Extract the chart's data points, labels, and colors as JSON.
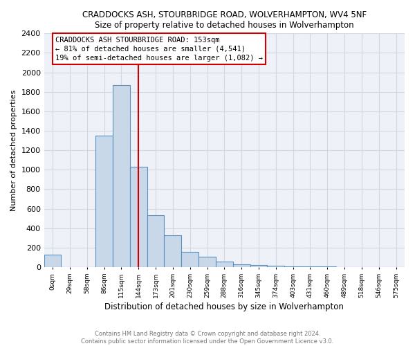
{
  "title": "CRADDOCKS ASH, STOURBRIDGE ROAD, WOLVERHAMPTON, WV4 5NF",
  "subtitle": "Size of property relative to detached houses in Wolverhampton",
  "xlabel": "Distribution of detached houses by size in Wolverhampton",
  "ylabel": "Number of detached properties",
  "bar_color": "#c8d8e8",
  "bar_edge_color": "#5a8fc0",
  "vline_color": "#cc0000",
  "vline_x": 5.0,
  "annotation_text": "CRADDOCKS ASH STOURBRIDGE ROAD: 153sqm\n← 81% of detached houses are smaller (4,541)\n19% of semi-detached houses are larger (1,082) →",
  "annotation_box_color": "#cc0000",
  "footnote_line1": "Contains HM Land Registry data © Crown copyright and database right 2024.",
  "footnote_line2": "Contains public sector information licensed under the Open Government Licence v3.0.",
  "categories": [
    "0sqm",
    "29sqm",
    "58sqm",
    "86sqm",
    "115sqm",
    "144sqm",
    "173sqm",
    "201sqm",
    "230sqm",
    "259sqm",
    "288sqm",
    "316sqm",
    "345sqm",
    "374sqm",
    "403sqm",
    "431sqm",
    "460sqm",
    "489sqm",
    "518sqm",
    "546sqm",
    "575sqm"
  ],
  "values": [
    130,
    0,
    0,
    1350,
    1870,
    1030,
    530,
    330,
    155,
    105,
    60,
    30,
    20,
    15,
    10,
    5,
    4,
    3,
    2,
    2,
    1
  ],
  "ylim_max": 2400,
  "ytick_step": 200,
  "background_color": "#ffffff",
  "grid_color": "#d0d8e0",
  "ax_bg_color": "#eef2f8"
}
